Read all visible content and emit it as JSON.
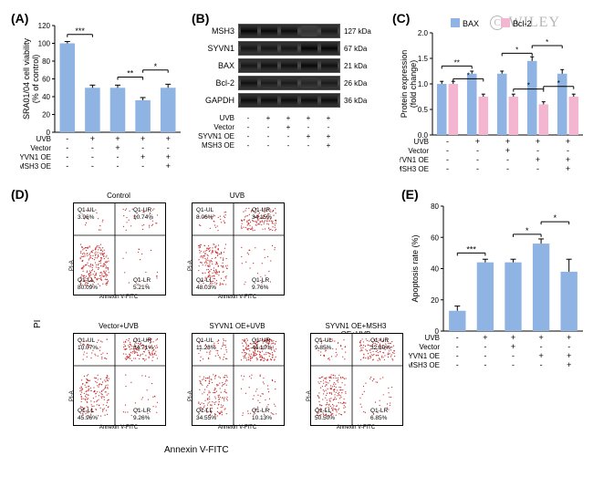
{
  "watermark": "WILEY",
  "panels": {
    "A": {
      "label": "(A)",
      "ylabel": "SRA01/04 cell viability\n(% of control)",
      "ylim": [
        0,
        120
      ],
      "ytick_step": 20,
      "bar_color": "#8fb3e2",
      "values": [
        100,
        50,
        50,
        36,
        50
      ],
      "errors": [
        2,
        3,
        3,
        3,
        4
      ],
      "sig": [
        {
          "from": 0,
          "to": 1,
          "label": "***",
          "y": 110
        },
        {
          "from": 2,
          "to": 3,
          "label": "**",
          "y": 62
        },
        {
          "from": 3,
          "to": 4,
          "label": "*",
          "y": 70
        }
      ],
      "conditions": [
        {
          "name": "UVB",
          "marks": [
            "-",
            "+",
            "+",
            "+",
            "+"
          ]
        },
        {
          "name": "Vector",
          "marks": [
            "-",
            "-",
            "+",
            "-",
            "-"
          ]
        },
        {
          "name": "SYVN1 OE",
          "marks": [
            "-",
            "-",
            "-",
            "+",
            "+"
          ]
        },
        {
          "name": "MSH3 OE",
          "marks": [
            "-",
            "-",
            "-",
            "-",
            "+"
          ]
        }
      ]
    },
    "B": {
      "label": "(B)",
      "proteins": [
        {
          "name": "MSH3",
          "kda": "127 kDa",
          "intensities": [
            0.95,
            0.9,
            0.85,
            0.3,
            0.7
          ]
        },
        {
          "name": "SYVN1",
          "kda": "67 kDa",
          "intensities": [
            0.7,
            0.7,
            0.7,
            0.95,
            0.95
          ]
        },
        {
          "name": "BAX",
          "kda": "21 kDa",
          "intensities": [
            0.7,
            0.8,
            0.8,
            0.9,
            0.8
          ]
        },
        {
          "name": "Bcl-2",
          "kda": "26 kDa",
          "intensities": [
            0.8,
            0.65,
            0.65,
            0.5,
            0.65
          ]
        },
        {
          "name": "GAPDH",
          "kda": "36 kDa",
          "intensities": [
            0.85,
            0.85,
            0.85,
            0.85,
            0.85
          ]
        }
      ],
      "conditions": [
        {
          "name": "UVB",
          "marks": [
            "-",
            "+",
            "+",
            "+",
            "+"
          ]
        },
        {
          "name": "Vector",
          "marks": [
            "-",
            "-",
            "+",
            "-",
            "-"
          ]
        },
        {
          "name": "SYVN1 OE",
          "marks": [
            "-",
            "-",
            "-",
            "+",
            "+"
          ]
        },
        {
          "name": "MSH3 OE",
          "marks": [
            "-",
            "-",
            "-",
            "-",
            "+"
          ]
        }
      ]
    },
    "C": {
      "label": "(C)",
      "ylabel": "Protein expression\n(fold change)",
      "ylim": [
        0,
        2.0
      ],
      "ytick_step": 0.5,
      "legend": [
        {
          "name": "BAX",
          "color": "#8fb3e2"
        },
        {
          "name": "Bcl-2",
          "color": "#f4b5d0"
        }
      ],
      "groups": 5,
      "bax_values": [
        1.0,
        1.2,
        1.2,
        1.45,
        1.2
      ],
      "bcl2_values": [
        1.0,
        0.75,
        0.75,
        0.6,
        0.75
      ],
      "bax_err": [
        0.05,
        0.05,
        0.05,
        0.08,
        0.08
      ],
      "bcl2_err": [
        0.05,
        0.05,
        0.05,
        0.05,
        0.05
      ],
      "conditions": [
        {
          "name": "UVB",
          "marks": [
            "-",
            "+",
            "+",
            "+",
            "+"
          ]
        },
        {
          "name": "Vector",
          "marks": [
            "-",
            "-",
            "+",
            "-",
            "-"
          ]
        },
        {
          "name": "SYVN1 OE",
          "marks": [
            "-",
            "-",
            "-",
            "+",
            "+"
          ]
        },
        {
          "name": "MSH3 OE",
          "marks": [
            "-",
            "-",
            "-",
            "-",
            "+"
          ]
        }
      ],
      "sig": [
        {
          "series": "bax",
          "from": 0,
          "to": 1,
          "label": "**",
          "y": 1.35
        },
        {
          "series": "bax",
          "from": 2,
          "to": 3,
          "label": "*",
          "y": 1.6
        },
        {
          "series": "bax",
          "from": 3,
          "to": 4,
          "label": "*",
          "y": 1.75
        },
        {
          "series": "bcl2",
          "from": 0,
          "to": 1,
          "label": "*",
          "y": 1.1
        },
        {
          "series": "bcl2",
          "from": 2,
          "to": 3,
          "label": "*",
          "y": 0.9
        },
        {
          "series": "bcl2",
          "from": 3,
          "to": 4,
          "label": "*",
          "y": 0.95
        }
      ]
    },
    "D": {
      "label": "(D)",
      "xlabel": "Annexin V-FITC",
      "ylabel": "PI",
      "dot_color": "#c62828",
      "plots": [
        {
          "title": "Control",
          "UL": "3.96%",
          "UR": "10.74%",
          "LL": "80.09%",
          "LR": "5.21%",
          "density": "low"
        },
        {
          "title": "UVB",
          "UL": "8.06%",
          "UR": "34.15%",
          "LL": "48.03%",
          "LR": "9.76%",
          "density": "med"
        },
        {
          "title": "Vector+UVB",
          "UL": "10.07%",
          "UR": "34.71%",
          "LL": "45.96%",
          "LR": "9.26%",
          "density": "med"
        },
        {
          "title": "SYVN1 OE+UVB",
          "UL": "11.23%",
          "UR": "44.10%",
          "LL": "34.55%",
          "LR": "10.13%",
          "density": "high"
        },
        {
          "title": "SYVN1 OE+MSH3 OE+UVB",
          "UL": "9.85%",
          "UR": "32.80%",
          "LL": "50.50%",
          "LR": "6.85%",
          "density": "med"
        }
      ]
    },
    "E": {
      "label": "(E)",
      "ylabel": "Apoptosis rate (%)",
      "ylim": [
        0,
        80
      ],
      "ytick_step": 20,
      "bar_color": "#8fb3e2",
      "values": [
        13,
        44,
        44,
        56,
        38
      ],
      "errors": [
        3,
        2,
        2,
        3,
        8
      ],
      "sig": [
        {
          "from": 0,
          "to": 1,
          "label": "***",
          "y": 50
        },
        {
          "from": 2,
          "to": 3,
          "label": "*",
          "y": 62
        },
        {
          "from": 3,
          "to": 4,
          "label": "*",
          "y": 70
        }
      ],
      "conditions": [
        {
          "name": "UVB",
          "marks": [
            "-",
            "+",
            "+",
            "+",
            "+"
          ]
        },
        {
          "name": "Vector",
          "marks": [
            "-",
            "-",
            "+",
            "-",
            "-"
          ]
        },
        {
          "name": "SYVN1 OE",
          "marks": [
            "-",
            "-",
            "-",
            "+",
            "+"
          ]
        },
        {
          "name": "MSH3 OE",
          "marks": [
            "-",
            "-",
            "-",
            "-",
            "+"
          ]
        }
      ]
    }
  }
}
